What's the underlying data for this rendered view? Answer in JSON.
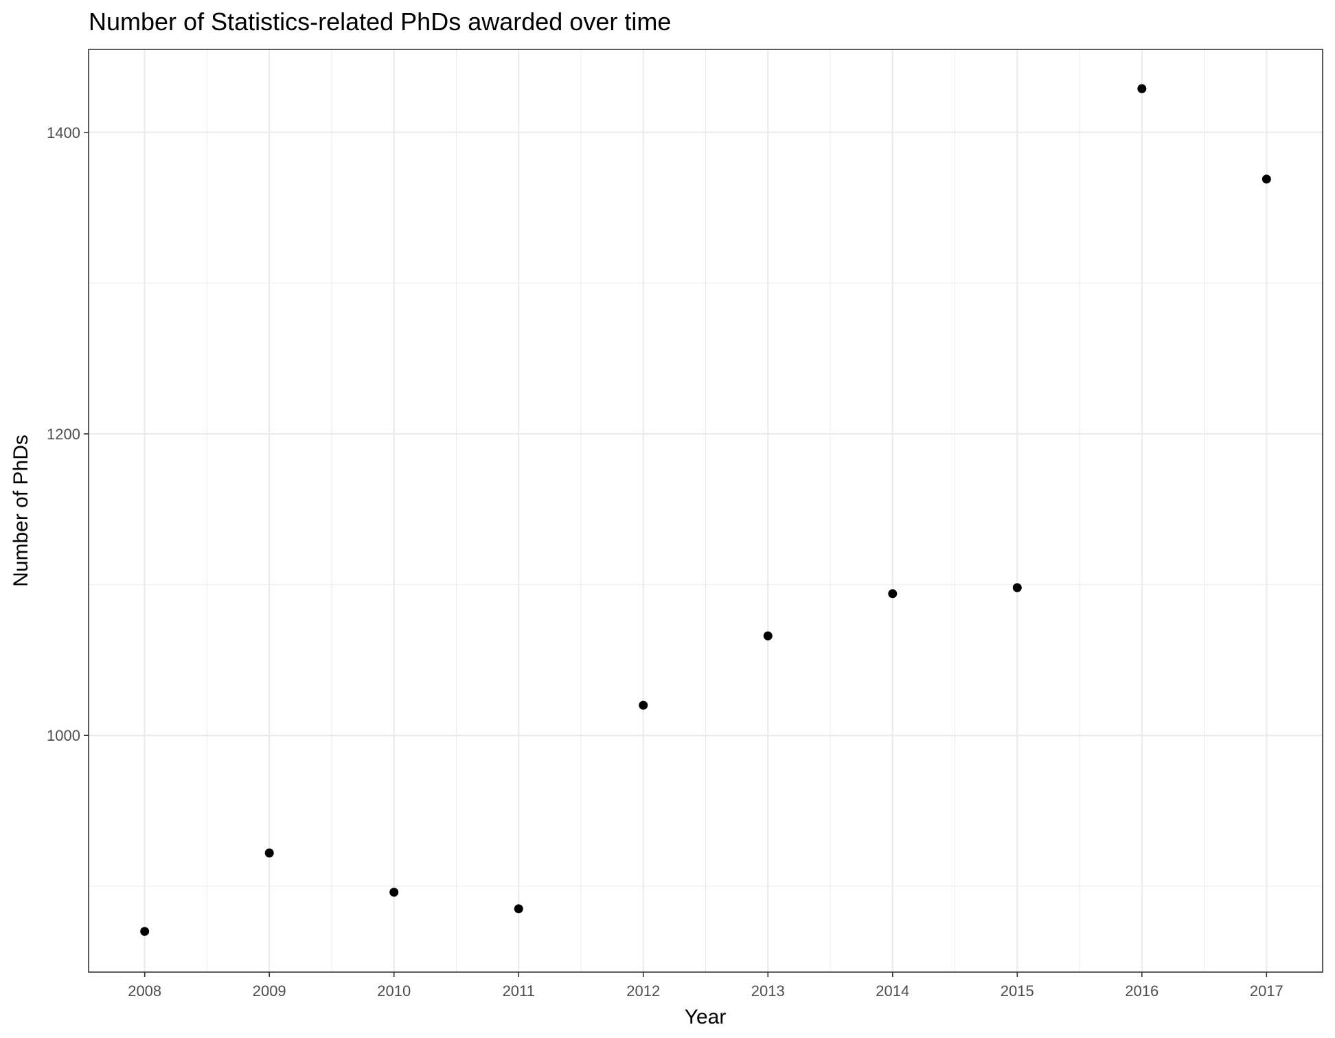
{
  "chart_data": {
    "type": "scatter",
    "title": "Number of Statistics-related PhDs awarded over time",
    "xlabel": "Year",
    "ylabel": "Number of PhDs",
    "x": [
      2008,
      2009,
      2010,
      2011,
      2012,
      2013,
      2014,
      2015,
      2016,
      2017
    ],
    "y": [
      870,
      922,
      896,
      885,
      1020,
      1066,
      1094,
      1098,
      1429,
      1369
    ],
    "x_ticks": [
      "2008",
      "2009",
      "2010",
      "2011",
      "2012",
      "2013",
      "2014",
      "2015",
      "2016",
      "2017"
    ],
    "y_ticks": [
      "1000",
      "1200",
      "1400"
    ],
    "xlim": [
      2007.55,
      2017.45
    ],
    "ylim": [
      843,
      1455
    ],
    "grid": true,
    "point_color": "#000000",
    "grid_color": "#ebebeb",
    "panel_border_color": "#333333"
  }
}
